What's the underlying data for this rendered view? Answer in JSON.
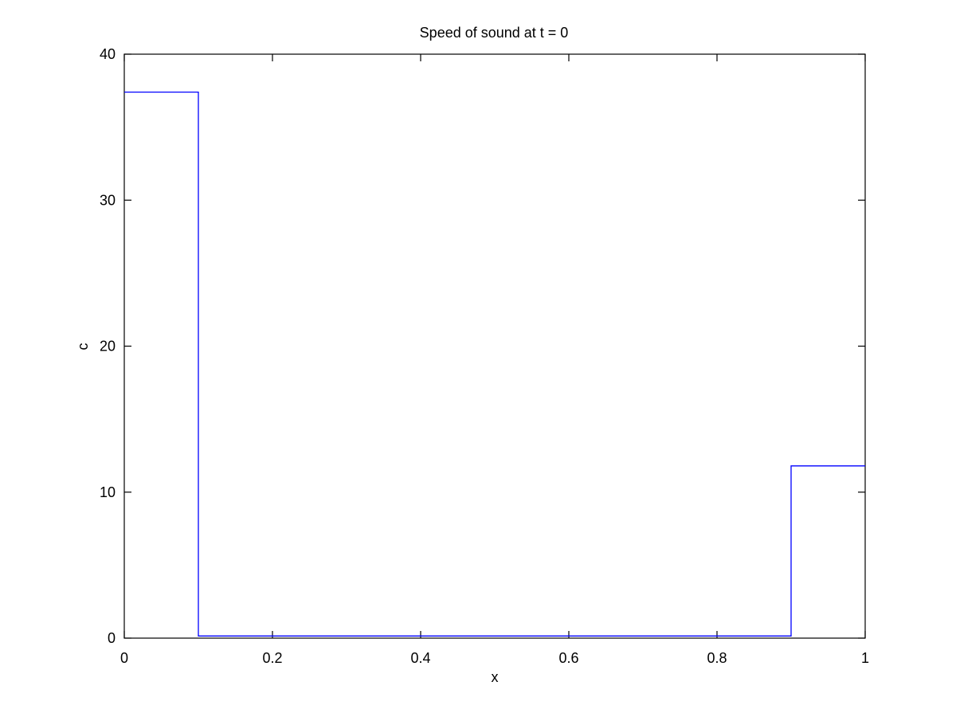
{
  "chart_data": {
    "type": "line",
    "title": "Speed of sound at t = 0",
    "xlabel": "x",
    "ylabel": "c",
    "xlim": [
      0,
      1
    ],
    "ylim": [
      0,
      40
    ],
    "x_ticks": [
      0,
      0.2,
      0.4,
      0.6,
      0.8,
      1
    ],
    "x_tick_labels": [
      "0",
      "0.2",
      "0.4",
      "0.6",
      "0.8",
      "1"
    ],
    "y_ticks": [
      0,
      10,
      20,
      30,
      40
    ],
    "y_tick_labels": [
      "0",
      "10",
      "20",
      "30",
      "40"
    ],
    "grid": false,
    "series": [
      {
        "color": "#0000ff",
        "x": [
          0,
          0.1,
          0.1,
          0.9,
          0.9,
          1.0
        ],
        "y": [
          37.4,
          37.4,
          0.15,
          0.15,
          11.8,
          11.8
        ]
      }
    ]
  }
}
